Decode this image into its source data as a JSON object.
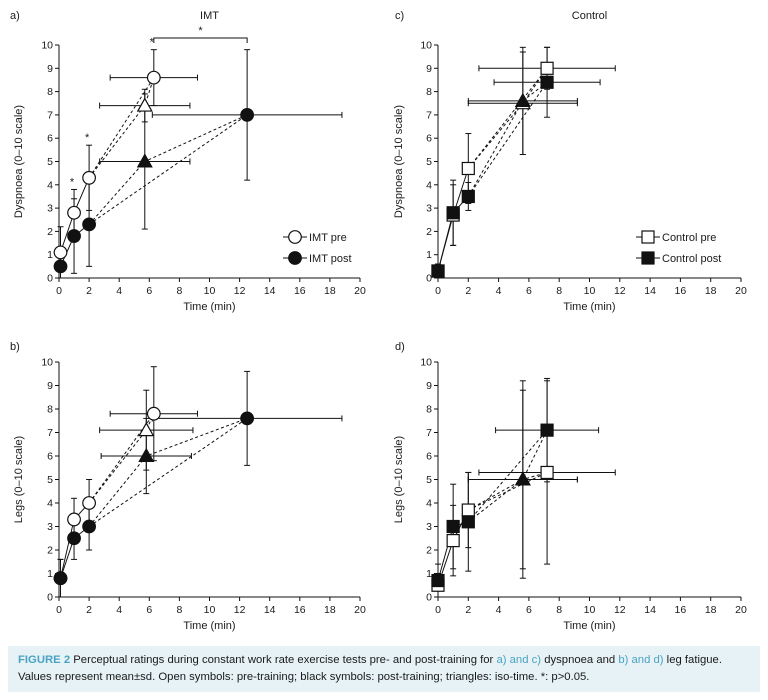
{
  "chart_data": [
    {
      "id": "a",
      "panel_label": "a)",
      "type": "scatter",
      "title": "IMT",
      "xlabel": "Time (min)",
      "ylabel": "Dyspnoea (0–10 scale)",
      "xlim": [
        0,
        20
      ],
      "ylim": [
        0,
        10
      ],
      "xticks": [
        0,
        2,
        4,
        6,
        8,
        10,
        12,
        14,
        16,
        18,
        20
      ],
      "yticks": [
        0,
        1,
        2,
        3,
        4,
        5,
        6,
        7,
        8,
        9,
        10
      ],
      "legend_position": "right",
      "significance_bracket": {
        "x1": 6.3,
        "x2": 12.5,
        "y": 10.3,
        "label": "*"
      },
      "series": [
        {
          "name": "IMT pre",
          "marker": "circle",
          "fill": "open",
          "line": "solid",
          "points": [
            {
              "x": 0.1,
              "y": 1.1,
              "yerr": 1.1
            },
            {
              "x": 1.0,
              "y": 2.8,
              "yerr": 1.0,
              "label": "*"
            },
            {
              "x": 2.0,
              "y": 4.3,
              "yerr": 1.4,
              "label": "*"
            },
            {
              "x": 6.3,
              "y": 8.6,
              "yerr": 1.2,
              "xerr": 2.9,
              "label": "*"
            }
          ]
        },
        {
          "name": "IMT post",
          "marker": "circle",
          "fill": "filled",
          "line": "solid",
          "points": [
            {
              "x": 0.1,
              "y": 0.5,
              "yerr": 0.5
            },
            {
              "x": 1.0,
              "y": 1.8,
              "yerr": 1.6
            },
            {
              "x": 2.0,
              "y": 2.3,
              "yerr": 1.8
            },
            {
              "x": 12.5,
              "y": 7.0,
              "yerr": 2.8,
              "xerr": 6.3
            }
          ]
        },
        {
          "name": "",
          "marker": "triangle",
          "fill": "open",
          "line": "dashed",
          "connects_to": 1,
          "points": [
            {
              "x": 5.7,
              "y": 7.4,
              "yerr": 0.7,
              "xerr": 3.0
            }
          ]
        },
        {
          "name": "",
          "marker": "triangle",
          "fill": "filled",
          "line": "dashed",
          "connects_to": 1,
          "points": [
            {
              "x": 5.7,
              "y": 5.0,
              "yerr": 2.9,
              "xerr": 3.0
            }
          ]
        }
      ]
    },
    {
      "id": "c",
      "panel_label": "c)",
      "type": "scatter",
      "title": "Control",
      "xlabel": "Time (min)",
      "ylabel": "Dyspnoea (0–10 scale)",
      "xlim": [
        0,
        20
      ],
      "ylim": [
        0,
        10
      ],
      "xticks": [
        0,
        2,
        4,
        6,
        8,
        10,
        12,
        14,
        16,
        18,
        20
      ],
      "yticks": [
        0,
        1,
        2,
        3,
        4,
        5,
        6,
        7,
        8,
        9,
        10
      ],
      "legend_position": "right",
      "series": [
        {
          "name": "Control pre",
          "marker": "square",
          "fill": "open",
          "line": "solid",
          "points": [
            {
              "x": 0.0,
              "y": 0.3,
              "yerr": 0.3
            },
            {
              "x": 1.0,
              "y": 2.7,
              "yerr": 1.3
            },
            {
              "x": 2.0,
              "y": 4.7,
              "yerr": 1.5
            },
            {
              "x": 7.2,
              "y": 9.0,
              "yerr": 0.9,
              "xerr": 4.5
            }
          ]
        },
        {
          "name": "Control post",
          "marker": "square",
          "fill": "filled",
          "line": "solid",
          "points": [
            {
              "x": 0.0,
              "y": 0.3,
              "yerr": 0.3
            },
            {
              "x": 1.0,
              "y": 2.8,
              "yerr": 1.4
            },
            {
              "x": 2.0,
              "y": 3.5,
              "yerr": 0.6
            },
            {
              "x": 7.2,
              "y": 8.4,
              "yerr": 1.5,
              "xerr": 3.5
            }
          ]
        },
        {
          "name": "",
          "marker": "triangle",
          "fill": "open",
          "line": "dashed",
          "connects_to": 1,
          "points": [
            {
              "x": 5.6,
              "y": 7.5,
              "yerr": 2.2,
              "xerr": 3.6
            }
          ]
        },
        {
          "name": "",
          "marker": "triangle",
          "fill": "filled",
          "line": "dashed",
          "connects_to": 1,
          "points": [
            {
              "x": 5.6,
              "y": 7.6,
              "yerr": 2.3,
              "xerr": 3.6
            }
          ]
        }
      ]
    },
    {
      "id": "b",
      "panel_label": "b)",
      "type": "scatter",
      "title": "",
      "xlabel": "Time (min)",
      "ylabel": "Legs (0–10 scale)",
      "xlim": [
        0,
        20
      ],
      "ylim": [
        0,
        10
      ],
      "xticks": [
        0,
        2,
        4,
        6,
        8,
        10,
        12,
        14,
        16,
        18,
        20
      ],
      "yticks": [
        0,
        1,
        2,
        3,
        4,
        5,
        6,
        7,
        8,
        9,
        10
      ],
      "series": [
        {
          "name": "IMT pre",
          "marker": "circle",
          "fill": "open",
          "line": "solid",
          "points": [
            {
              "x": 0.1,
              "y": 0.8,
              "yerr": 0.8
            },
            {
              "x": 1.0,
              "y": 3.3,
              "yerr": 0.9
            },
            {
              "x": 2.0,
              "y": 4.0,
              "yerr": 1.0
            },
            {
              "x": 6.3,
              "y": 7.8,
              "yerr": 2.0,
              "xerr": 2.9
            }
          ]
        },
        {
          "name": "IMT post",
          "marker": "circle",
          "fill": "filled",
          "line": "solid",
          "points": [
            {
              "x": 0.1,
              "y": 0.8,
              "yerr": 0.8
            },
            {
              "x": 1.0,
              "y": 2.5,
              "yerr": 0.9
            },
            {
              "x": 2.0,
              "y": 3.0,
              "yerr": 1.0
            },
            {
              "x": 12.5,
              "y": 7.6,
              "yerr": 2.0,
              "xerr": 6.3
            }
          ]
        },
        {
          "name": "",
          "marker": "triangle",
          "fill": "open",
          "line": "dashed",
          "connects_to": 1,
          "points": [
            {
              "x": 5.8,
              "y": 7.1,
              "yerr": 1.7,
              "xerr": 3.1
            }
          ]
        },
        {
          "name": "",
          "marker": "triangle",
          "fill": "filled",
          "line": "dashed",
          "connects_to": 1,
          "points": [
            {
              "x": 5.8,
              "y": 6.0,
              "yerr": 1.6,
              "xerr": 3.0
            }
          ]
        }
      ]
    },
    {
      "id": "d",
      "panel_label": "d)",
      "type": "scatter",
      "title": "",
      "xlabel": "Time (min)",
      "ylabel": "Legs (0–10 scale)",
      "xlim": [
        0,
        20
      ],
      "ylim": [
        0,
        10
      ],
      "xticks": [
        0,
        2,
        4,
        6,
        8,
        10,
        12,
        14,
        16,
        18,
        20
      ],
      "yticks": [
        0,
        1,
        2,
        3,
        4,
        5,
        6,
        7,
        8,
        9,
        10
      ],
      "series": [
        {
          "name": "Control pre",
          "marker": "square",
          "fill": "open",
          "line": "solid",
          "points": [
            {
              "x": 0.0,
              "y": 0.5,
              "yerr": 0.5
            },
            {
              "x": 1.0,
              "y": 2.4,
              "yerr": 1.5
            },
            {
              "x": 2.0,
              "y": 3.7,
              "yerr": 1.6
            },
            {
              "x": 7.2,
              "y": 5.3,
              "yerr": 3.9,
              "xerr": 4.5
            }
          ]
        },
        {
          "name": "Control post",
          "marker": "square",
          "fill": "filled",
          "line": "solid",
          "points": [
            {
              "x": 0.0,
              "y": 0.7,
              "yerr": 0.7
            },
            {
              "x": 1.0,
              "y": 3.0,
              "yerr": 1.8
            },
            {
              "x": 2.0,
              "y": 3.2,
              "yerr": 2.1
            },
            {
              "x": 7.2,
              "y": 7.1,
              "yerr": 2.2,
              "xerr": 3.4
            }
          ]
        },
        {
          "name": "",
          "marker": "triangle",
          "fill": "open",
          "line": "dashed",
          "connects_to": 1,
          "points": [
            {
              "x": 5.6,
              "y": 5.0,
              "yerr": 4.2,
              "xerr": 3.6
            }
          ]
        },
        {
          "name": "",
          "marker": "triangle",
          "fill": "filled",
          "line": "dashed",
          "connects_to": 1,
          "points": [
            {
              "x": 5.6,
              "y": 5.0,
              "yerr": 3.8,
              "xerr": 3.6
            }
          ]
        }
      ]
    }
  ],
  "caption": {
    "label": "FIGURE 2",
    "text1": " Perceptual ratings during constant work rate exercise tests pre- and post-training for ",
    "ref1": "a) and c)",
    "text2": " dyspnoea and ",
    "ref2": "b) and d)",
    "text3": " leg fatigue. Values represent mean±sd. Open symbols: pre-training; black symbols: post-training; triangles: iso-time. *: p>0.05."
  }
}
